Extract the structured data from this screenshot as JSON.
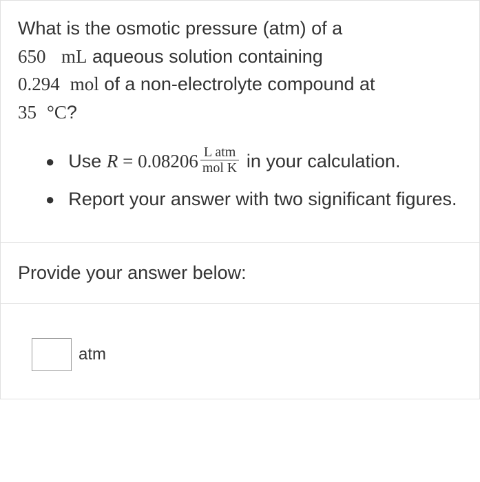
{
  "question": {
    "line1_a": "What is the osmotic pressure (atm) of a",
    "volume": "650",
    "volume_unit": "mL",
    "line1_b": " aqueous solution containing",
    "moles": "0.294",
    "moles_unit": "mol",
    "line2_b": " of a non-electrolyte compound at",
    "temperature": "35",
    "temp_unit": "°C",
    "question_mark": "?"
  },
  "bullets": {
    "item1_a": "Use ",
    "item1_var": "R",
    "item1_eq": " = ",
    "item1_val": "0.08206",
    "fraction_num": "L atm",
    "fraction_den": "mol K",
    "item1_b": " in your calculation.",
    "item2": "Report your answer with two significant figures."
  },
  "prompt": "Provide your answer below:",
  "answer": {
    "unit": "atm",
    "value": ""
  },
  "colors": {
    "text": "#333333",
    "border": "#e0e0e0",
    "input_border": "#999999",
    "background": "#ffffff"
  }
}
